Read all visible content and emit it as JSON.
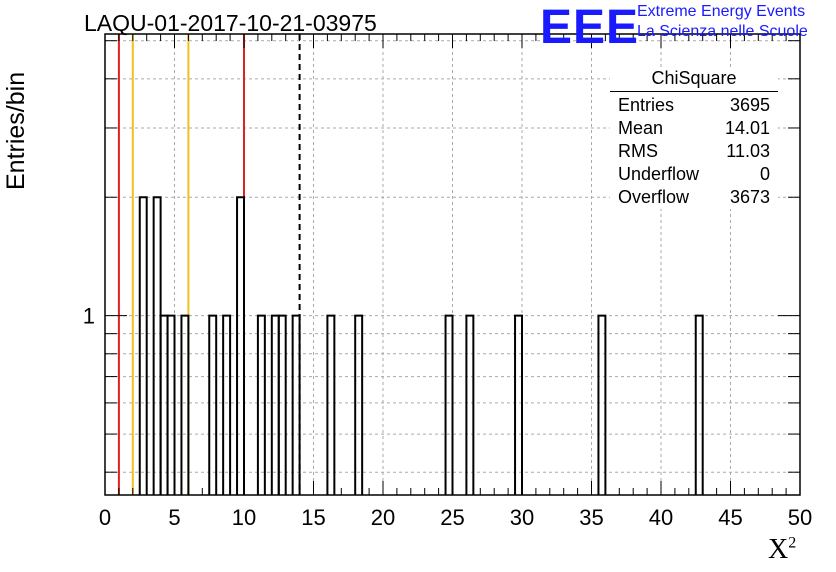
{
  "chart_data": {
    "type": "bar",
    "title": "LAQU-01-2017-10-21-03975",
    "ylabel": "Entries/bin",
    "xlabel": "X",
    "xlabel_sup": "2",
    "xlim": [
      0,
      50
    ],
    "x_ticks": [
      "0",
      "5",
      "10",
      "15",
      "20",
      "25",
      "30",
      "35",
      "40",
      "45",
      "50"
    ],
    "y_ticks": [
      "1"
    ],
    "y_scale": "log",
    "ylim": [
      0.35,
      5.2
    ],
    "bin_width": 0.5,
    "grid": true,
    "bins": [
      {
        "x0": 2.5,
        "value": 2
      },
      {
        "x0": 3.0,
        "value": 0
      },
      {
        "x0": 3.5,
        "value": 2
      },
      {
        "x0": 4.0,
        "value": 1
      },
      {
        "x0": 4.5,
        "value": 1
      },
      {
        "x0": 5.0,
        "value": 0
      },
      {
        "x0": 5.5,
        "value": 1
      },
      {
        "x0": 7.5,
        "value": 1
      },
      {
        "x0": 8.5,
        "value": 1
      },
      {
        "x0": 9.5,
        "value": 2
      },
      {
        "x0": 11.0,
        "value": 1
      },
      {
        "x0": 12.0,
        "value": 1
      },
      {
        "x0": 12.5,
        "value": 1
      },
      {
        "x0": 13.5,
        "value": 1
      },
      {
        "x0": 16.0,
        "value": 1
      },
      {
        "x0": 18.0,
        "value": 1
      },
      {
        "x0": 24.5,
        "value": 1
      },
      {
        "x0": 26.0,
        "value": 1
      },
      {
        "x0": 29.5,
        "value": 1
      },
      {
        "x0": 35.5,
        "value": 1
      },
      {
        "x0": 42.5,
        "value": 1
      }
    ],
    "vertical_lines": [
      {
        "x": 1.0,
        "color": "#dd2222",
        "style": "solid"
      },
      {
        "x": 2.0,
        "color": "#f0c020",
        "style": "solid"
      },
      {
        "x": 6.0,
        "color": "#f0c020",
        "style": "solid"
      },
      {
        "x": 10.0,
        "color": "#dd2222",
        "style": "solid"
      },
      {
        "x": 14.0,
        "color": "#000000",
        "style": "dashed"
      }
    ],
    "stats": {
      "name": "ChiSquare",
      "rows": [
        {
          "label": "Entries",
          "value": "3695"
        },
        {
          "label": "Mean",
          "value": "14.01"
        },
        {
          "label": "RMS",
          "value": "11.03"
        },
        {
          "label": "Underflow",
          "value": "0"
        },
        {
          "label": "Overflow",
          "value": "3673"
        }
      ],
      "legend_position": "top-right"
    }
  },
  "logo": {
    "mark": "EEE",
    "line1": "Extreme Energy Events",
    "line2": "La Scienza nelle Scuole",
    "color": "#1a1aff"
  }
}
